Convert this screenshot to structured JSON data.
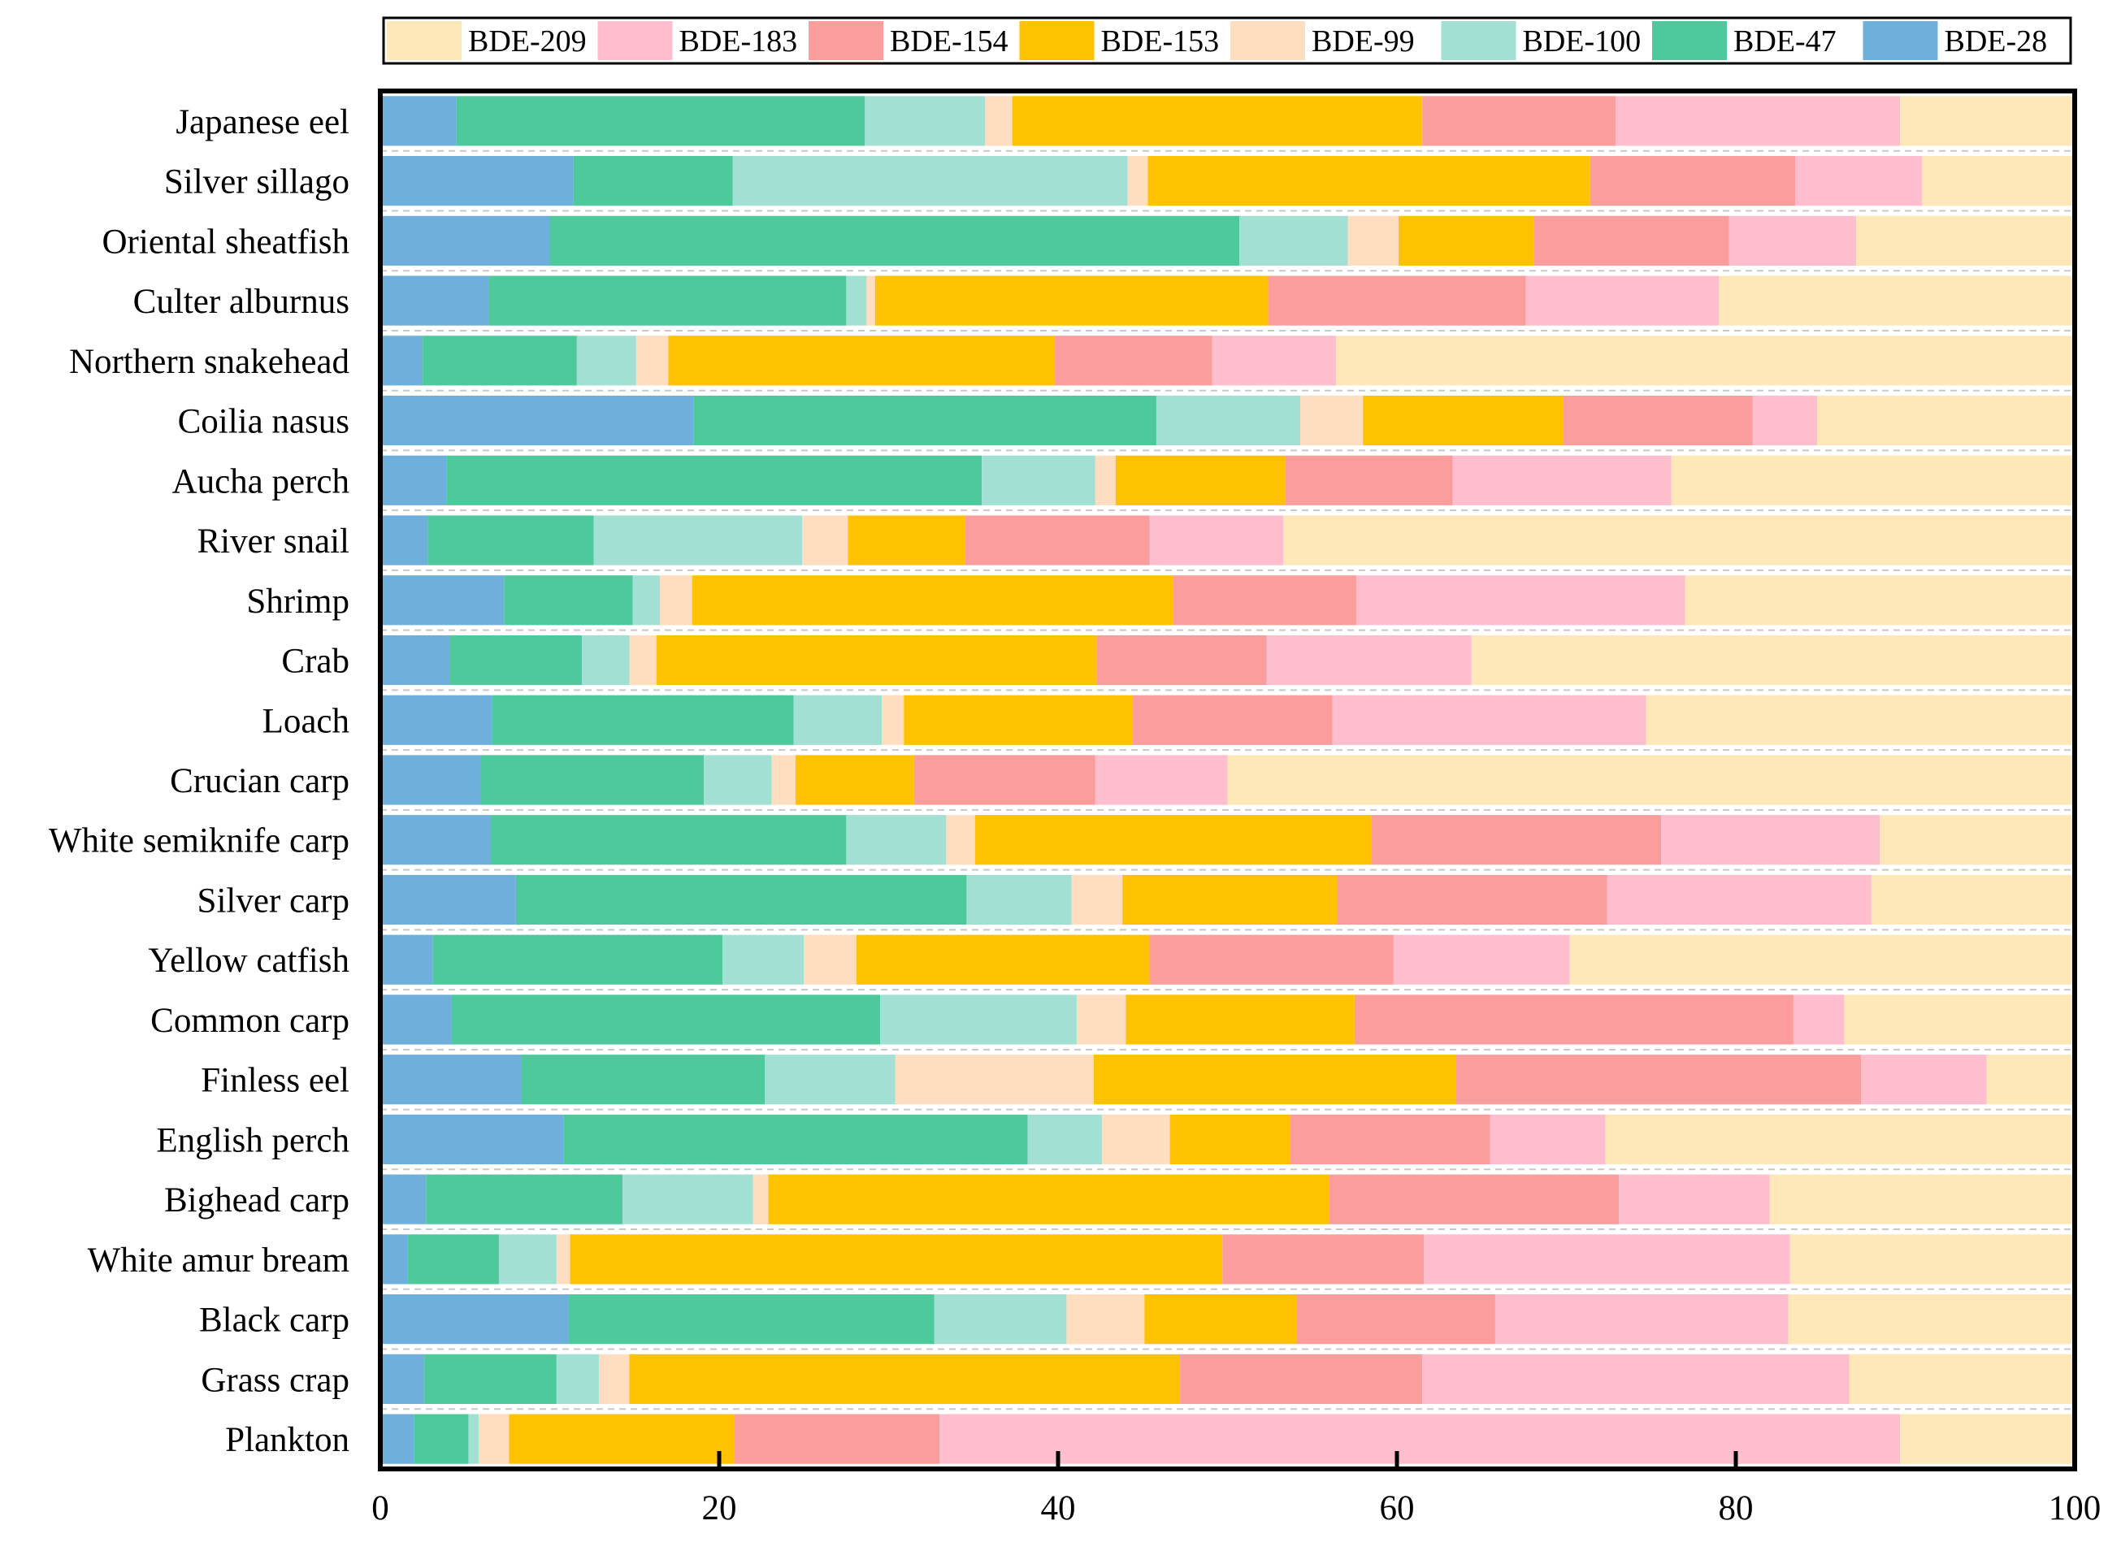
{
  "chart_data": {
    "type": "bar",
    "orientation": "horizontal",
    "stacked": true,
    "title": "",
    "xlabel": "",
    "ylabel": "",
    "xlim": [
      0,
      100
    ],
    "xticks": [
      0,
      20,
      40,
      60,
      80,
      100
    ],
    "grid": "horizontal dashed lines between bars",
    "legend_position": "top",
    "categories": [
      "Japanese eel",
      "Silver sillago",
      "Oriental sheatfish",
      "Culter alburnus",
      "Northern snakehead",
      "Coilia nasus",
      "Aucha perch",
      "River snail",
      "Shrimp",
      "Crab",
      "Loach",
      "Crucian carp",
      "White semiknife carp",
      "Silver carp",
      "Yellow catfish",
      "Common carp",
      "Finless eel",
      "English perch",
      "Bighead carp",
      "White amur bream",
      "Black carp",
      "Grass crap",
      "Plankton"
    ],
    "series": [
      {
        "name": "BDE-28",
        "color": "#6EB0DB",
        "values": [
          4.5,
          11.4,
          10.0,
          6.4,
          2.5,
          18.5,
          3.9,
          2.8,
          7.3,
          4.1,
          6.6,
          5.9,
          6.5,
          8.0,
          3.1,
          4.2,
          8.3,
          10.8,
          2.7,
          1.6,
          11.1,
          2.6,
          2.0
        ]
      },
      {
        "name": "BDE-47",
        "color": "#4DC99C",
        "values": [
          24.1,
          9.4,
          40.7,
          21.1,
          9.1,
          27.3,
          31.6,
          9.8,
          7.6,
          7.8,
          17.8,
          13.2,
          21.0,
          26.6,
          17.1,
          25.3,
          14.4,
          27.4,
          11.6,
          5.4,
          21.6,
          7.8,
          3.2
        ]
      },
      {
        "name": "BDE-100",
        "color": "#A3E0D4",
        "values": [
          7.1,
          23.3,
          6.4,
          1.2,
          3.5,
          8.5,
          6.7,
          12.3,
          1.6,
          2.8,
          5.2,
          4.0,
          5.9,
          6.2,
          4.8,
          11.6,
          7.7,
          4.4,
          7.7,
          3.4,
          7.8,
          2.5,
          0.6
        ]
      },
      {
        "name": "BDE-99",
        "color": "#FEDDC1",
        "values": [
          1.6,
          1.2,
          3.0,
          0.5,
          1.9,
          3.7,
          1.2,
          2.7,
          1.9,
          1.6,
          1.3,
          1.4,
          1.7,
          3.0,
          3.1,
          2.9,
          11.7,
          4.0,
          0.9,
          0.8,
          4.6,
          1.8,
          1.8
        ]
      },
      {
        "name": "BDE-153",
        "color": "#FEC200",
        "values": [
          24.2,
          26.1,
          8.0,
          23.2,
          22.8,
          11.8,
          10.0,
          6.9,
          28.4,
          26.0,
          13.5,
          7.0,
          23.4,
          12.7,
          17.3,
          13.5,
          21.4,
          7.1,
          33.1,
          38.5,
          9.0,
          32.5,
          13.3
        ]
      },
      {
        "name": "BDE-154",
        "color": "#FB9D9C",
        "values": [
          11.4,
          12.1,
          11.5,
          15.2,
          9.3,
          11.2,
          9.9,
          10.9,
          10.8,
          10.0,
          11.8,
          10.7,
          17.1,
          15.9,
          14.4,
          25.9,
          23.9,
          11.8,
          17.1,
          11.9,
          11.7,
          14.3,
          12.1
        ]
      },
      {
        "name": "BDE-183",
        "color": "#FEBECD",
        "values": [
          16.8,
          7.5,
          7.5,
          11.4,
          7.3,
          3.8,
          12.9,
          7.9,
          19.4,
          12.1,
          18.5,
          7.8,
          12.9,
          15.6,
          10.4,
          3.0,
          7.4,
          6.8,
          8.9,
          21.6,
          17.3,
          25.2,
          56.7
        ]
      },
      {
        "name": "BDE-209",
        "color": "#FFE8B8",
        "values": [
          10.3,
          9.0,
          12.9,
          21.0,
          43.6,
          15.2,
          23.8,
          46.7,
          23.0,
          35.6,
          25.3,
          50.0,
          11.5,
          12.0,
          29.8,
          13.6,
          5.2,
          27.7,
          18.0,
          16.8,
          16.9,
          13.3,
          10.3
        ]
      }
    ]
  }
}
